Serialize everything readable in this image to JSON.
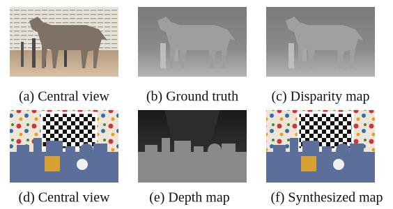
{
  "panels": [
    {
      "caption": "(a) Central view"
    },
    {
      "caption": "(b) Ground truth"
    },
    {
      "caption": "(c) Disparity map"
    },
    {
      "caption": "(d) Central view"
    },
    {
      "caption": "(e) Depth map"
    },
    {
      "caption": "(f) Synthesized map"
    }
  ]
}
